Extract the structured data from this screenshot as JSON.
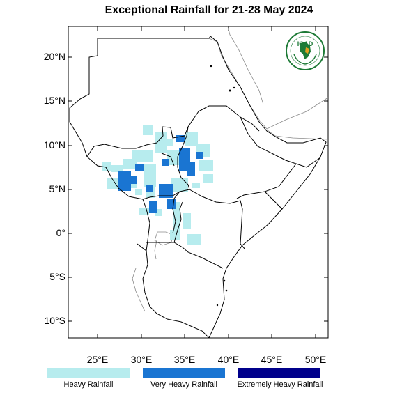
{
  "title": "Exceptional Rainfall for 21-28 May 2024",
  "axes": {
    "lon_ticks": [
      "25°E",
      "30°E",
      "35°E",
      "40°E",
      "45°E",
      "50°E"
    ],
    "lat_ticks": [
      "20°N",
      "15°N",
      "10°N",
      "5°N",
      "0°",
      "5°S",
      "10°S"
    ]
  },
  "legend": [
    {
      "label": "Heavy Rainfall",
      "color": "#b7ecee"
    },
    {
      "label": "Very Heavy Rainfall",
      "color": "#1a75d2"
    },
    {
      "label": "Extremely Heavy Rainfall",
      "color": "#00008b"
    }
  ],
  "logo": {
    "text": "IGAD"
  },
  "colors": {
    "land_border": "#000000",
    "coast_grey": "#888888",
    "logo_green": "#1d7a36",
    "logo_gold": "#e0a020"
  }
}
